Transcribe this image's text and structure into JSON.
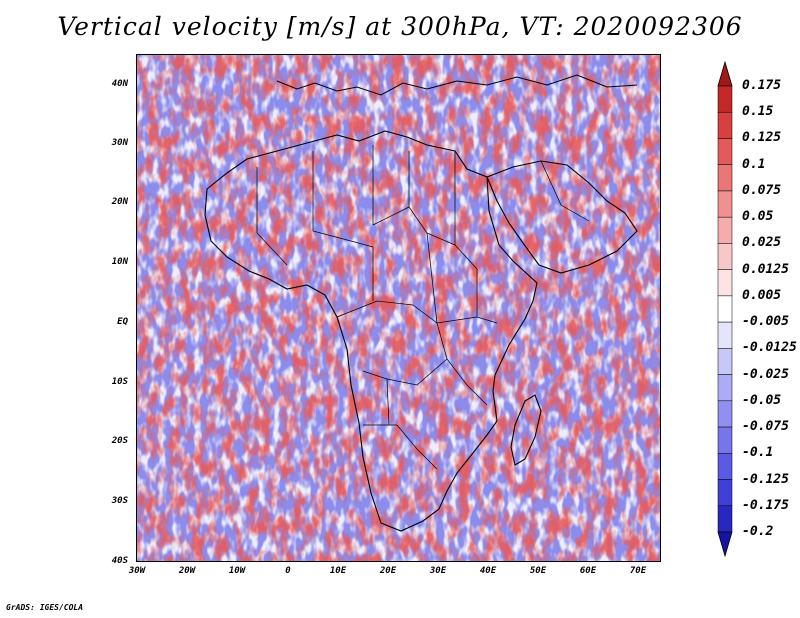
{
  "title": "Vertical velocity [m/s] at 300hPa, VT: 2020092306",
  "footer": "GrADS: IGES/COLA",
  "map": {
    "variable": "Vertical velocity",
    "units": "m/s",
    "level": "300hPa",
    "valid_time": "2020092306",
    "lon_range": [
      -30,
      76
    ],
    "lat_range": [
      -40,
      46
    ],
    "lat_ticks": [
      "40N",
      "30N",
      "20N",
      "10N",
      "EQ",
      "10S",
      "20S",
      "30S",
      "40S"
    ],
    "lon_ticks": [
      "30W",
      "20W",
      "10W",
      "0",
      "10E",
      "20E",
      "30E",
      "40E",
      "50E",
      "60E",
      "70E"
    ]
  },
  "colorbar": {
    "labels": [
      "0.175",
      "0.15",
      "0.125",
      "0.1",
      "0.075",
      "0.05",
      "0.025",
      "0.0125",
      "0.005",
      "-0.005",
      "-0.0125",
      "-0.025",
      "-0.05",
      "-0.075",
      "-0.1",
      "-0.125",
      "-0.175",
      "-0.2"
    ],
    "colors": [
      "#a01818",
      "#c42828",
      "#d84040",
      "#e45a5a",
      "#ea7676",
      "#f09090",
      "#f4acac",
      "#f8c8c8",
      "#fce4e4",
      "#ffffff",
      "#e4e4fc",
      "#c8c8f8",
      "#acacf4",
      "#9090f0",
      "#7676ea",
      "#5a5ae4",
      "#4040d8",
      "#2828c0",
      "#1414a0"
    ]
  }
}
